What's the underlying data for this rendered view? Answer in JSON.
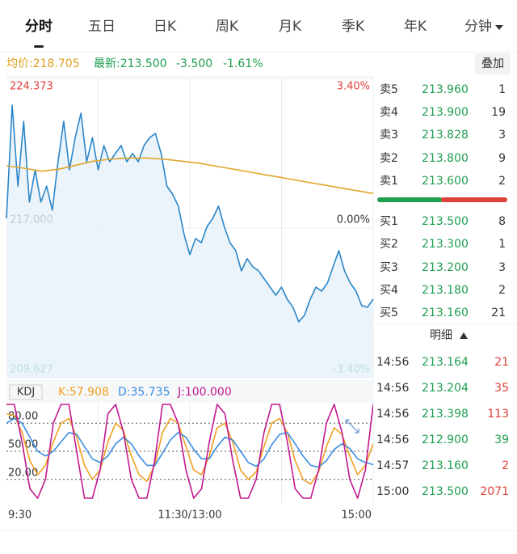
{
  "tabs": [
    "分时",
    "五日",
    "日K",
    "周K",
    "月K",
    "季K",
    "年K",
    "分钟"
  ],
  "header": {
    "avg": "均价:218.705",
    "latest": "最新:213.500",
    "change": "-3.500",
    "change_pct": "-1.61%",
    "overlay": "叠加"
  },
  "chart_data": [
    {
      "type": "line",
      "ylim": [
        209.627,
        224.373
      ],
      "yticks": [
        224.373,
        {
          "value": 217,
          "label": "217.000"
        },
        209.627
      ],
      "y2lim": [
        -3.4,
        3.4
      ],
      "y2ticks": [
        {
          "value": 3.4,
          "label": "3.40%"
        },
        {
          "value": 0,
          "label": "0.00%"
        },
        {
          "value": -3.4,
          "label": "-3.40%"
        }
      ],
      "grid": true,
      "series": [
        {
          "color": "#2a86c8",
          "values": [
            217.48,
            223.06,
            219.07,
            222.26,
            218.28,
            219.87,
            218.28,
            219.07,
            217.88,
            220.27,
            222.26,
            219.87,
            221.46,
            222.66,
            220.27,
            221.46,
            219.87,
            221.07,
            220.27,
            220.67,
            221.07,
            220.27,
            220.67,
            220.27,
            221.07,
            221.46,
            221.66,
            220.67,
            219.07,
            218.67,
            218.08,
            216.68,
            215.69,
            216.48,
            216.28,
            217.08,
            217.48,
            218.08,
            217.08,
            216.28,
            215.89,
            214.89,
            215.49,
            215.09,
            214.89,
            214.49,
            214.09,
            213.69,
            214.09,
            213.49,
            213.1,
            212.38,
            212.7,
            213.49,
            214.09,
            213.89,
            214.29,
            215.09,
            215.89,
            214.89,
            214.29,
            213.89,
            213.18,
            213.1,
            213.5
          ]
        },
        {
          "color": "#e0a62a",
          "values": [
            220.07,
            219.95,
            219.8,
            219.9,
            220.1,
            220.3,
            220.4,
            220.45,
            220.45,
            220.4,
            220.3,
            220.2,
            220.05,
            219.9,
            219.75,
            219.6,
            219.45,
            219.3,
            219.15,
            219.0,
            218.85,
            218.705
          ]
        }
      ]
    },
    {
      "type": "line",
      "title": "KDJ",
      "ylim": [
        0,
        100
      ],
      "yticks": [
        {
          "value": 80,
          "label": "80.00"
        },
        {
          "value": 50,
          "label": "50.00"
        },
        {
          "value": 20,
          "label": "20.00"
        }
      ],
      "time_labels": [
        "9:30",
        "11:30/13:00",
        "15:00"
      ],
      "series": [
        {
          "name": "K:57.908",
          "color": "#f0a020",
          "values": [
            90,
            88,
            70,
            40,
            25,
            35,
            60,
            80,
            85,
            65,
            35,
            20,
            30,
            60,
            80,
            72,
            45,
            25,
            18,
            35,
            70,
            85,
            80,
            55,
            30,
            25,
            45,
            75,
            80,
            60,
            30,
            20,
            28,
            55,
            80,
            85,
            70,
            40,
            20,
            15,
            28,
            55,
            75,
            68,
            45,
            25,
            35,
            57.908
          ]
        },
        {
          "name": "D:35.735",
          "color": "#3a8ee0",
          "values": [
            80,
            85,
            80,
            65,
            50,
            45,
            50,
            60,
            70,
            68,
            55,
            42,
            38,
            45,
            58,
            65,
            58,
            45,
            35,
            35,
            48,
            62,
            70,
            65,
            52,
            42,
            42,
            55,
            65,
            62,
            50,
            38,
            34,
            42,
            57,
            68,
            70,
            58,
            45,
            35,
            33,
            40,
            52,
            58,
            53,
            42,
            38,
            35.735
          ]
        },
        {
          "name": "J:100.000",
          "color": "#c2188f",
          "values": [
            100,
            100,
            60,
            10,
            0,
            20,
            80,
            100,
            100,
            50,
            0,
            0,
            30,
            90,
            100,
            70,
            20,
            0,
            0,
            40,
            100,
            100,
            80,
            30,
            0,
            10,
            60,
            100,
            90,
            40,
            0,
            0,
            20,
            70,
            100,
            100,
            60,
            10,
            0,
            0,
            30,
            80,
            100,
            70,
            20,
            0,
            30,
            100
          ]
        }
      ]
    }
  ],
  "order_book": [
    [
      "卖5",
      "213.960",
      "1"
    ],
    [
      "卖4",
      "213.900",
      "19"
    ],
    [
      "卖3",
      "213.828",
      "3"
    ],
    [
      "卖2",
      "213.800",
      "9"
    ],
    [
      "卖1",
      "213.600",
      "2"
    ],
    [
      "买1",
      "213.500",
      "8"
    ],
    [
      "买2",
      "213.300",
      "1"
    ],
    [
      "买3",
      "213.200",
      "3"
    ],
    [
      "买4",
      "213.180",
      "2"
    ],
    [
      "买5",
      "213.160",
      "21"
    ]
  ],
  "detail": "明细",
  "trades": [
    {
      "time": "14:56",
      "price": "213.164",
      "volume": "21",
      "color": "#e0413b"
    },
    {
      "time": "14:56",
      "price": "213.204",
      "volume": "35",
      "color": "#e0413b"
    },
    {
      "time": "14:56",
      "price": "213.398",
      "volume": "113",
      "color": "#e0413b"
    },
    {
      "time": "14:56",
      "price": "212.900",
      "volume": "39",
      "color": "#1f9e50"
    },
    {
      "time": "14:57",
      "price": "213.160",
      "volume": "2",
      "color": "#e0413b"
    },
    {
      "time": "15:00",
      "price": "213.500",
      "volume": "2071",
      "color": "#e0413b"
    }
  ]
}
